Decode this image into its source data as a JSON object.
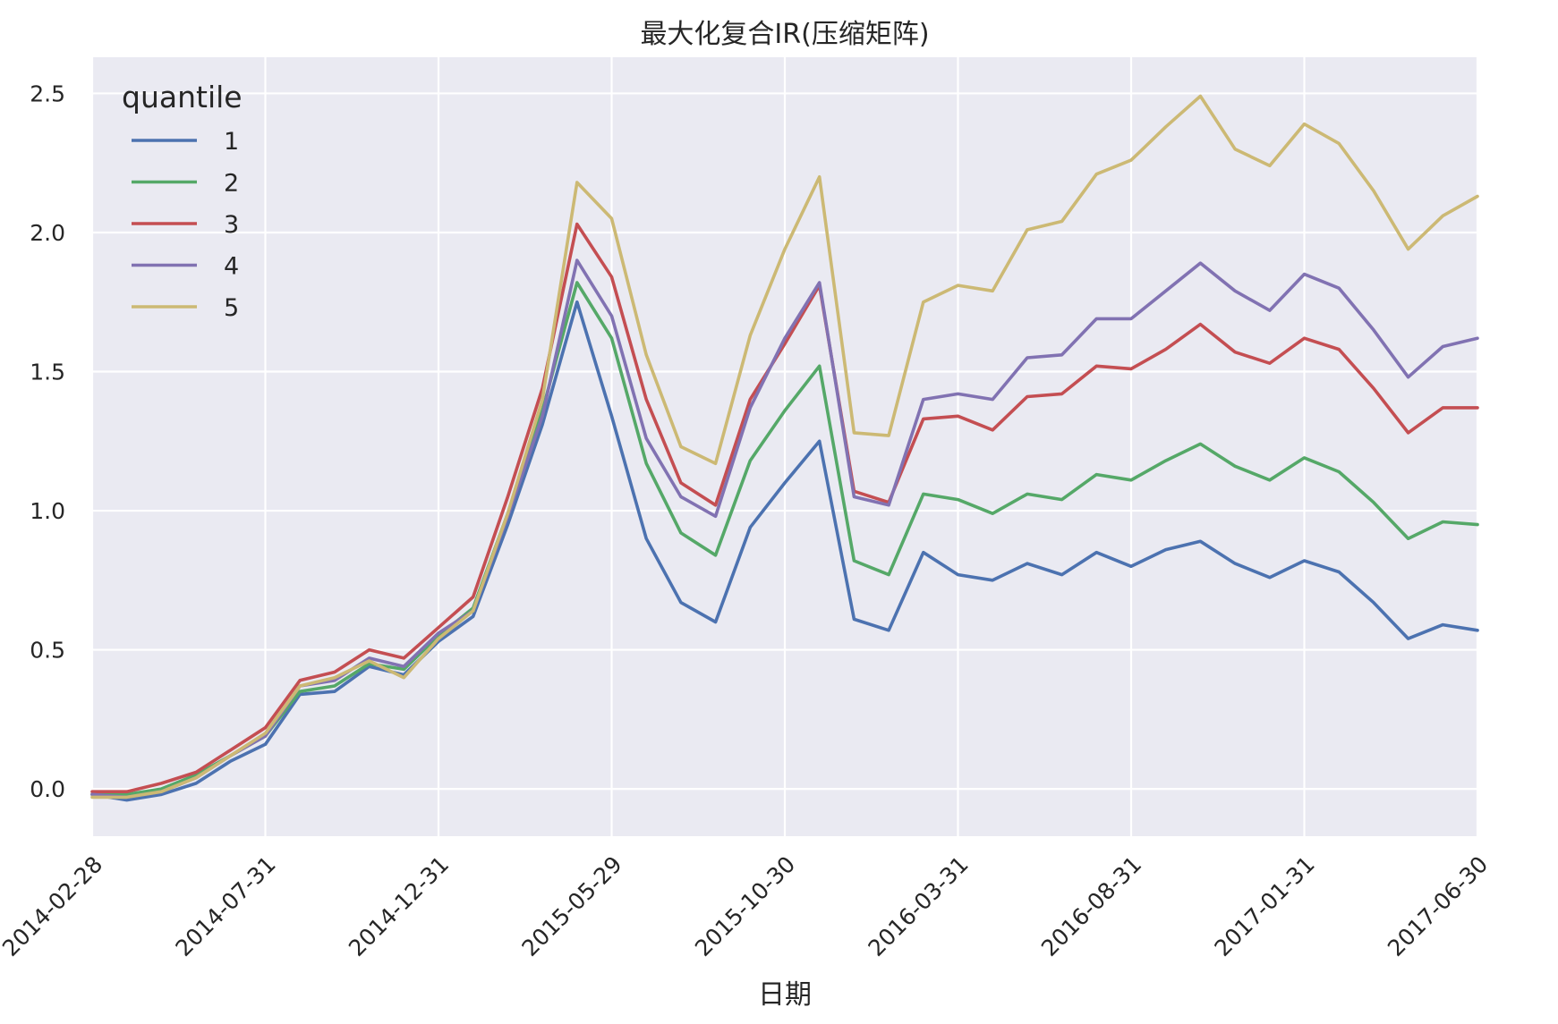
{
  "chart_data": {
    "type": "line",
    "title": "最大化复合IR(压缩矩阵)",
    "xlabel": "日期",
    "ylabel": "",
    "ylim": [
      -0.17,
      2.63
    ],
    "grid": true,
    "legend": {
      "title": "quantile",
      "placement": "top-left"
    },
    "x_tick_labels": [
      "2014-02-28",
      "2014-07-31",
      "2014-12-31",
      "2015-05-29",
      "2015-10-30",
      "2016-03-31",
      "2016-08-31",
      "2017-01-31",
      "2017-06-30"
    ],
    "x_tick_indices": [
      0,
      5,
      10,
      15,
      20,
      25,
      30,
      35,
      40
    ],
    "y_ticks": [
      0.0,
      0.5,
      1.0,
      1.5,
      2.0,
      2.5
    ],
    "y_tick_labels": [
      "0.0",
      "0.5",
      "1.0",
      "1.5",
      "2.0",
      "2.5"
    ],
    "x": [
      "2014-02-28",
      "2014-03-31",
      "2014-04-30",
      "2014-05-30",
      "2014-06-30",
      "2014-07-31",
      "2014-08-29",
      "2014-09-30",
      "2014-10-31",
      "2014-11-28",
      "2014-12-31",
      "2015-01-30",
      "2015-02-27",
      "2015-03-31",
      "2015-04-30",
      "2015-05-29",
      "2015-06-30",
      "2015-07-31",
      "2015-08-31",
      "2015-09-30",
      "2015-10-30",
      "2015-11-30",
      "2015-12-31",
      "2016-01-29",
      "2016-02-29",
      "2016-03-31",
      "2016-04-29",
      "2016-05-31",
      "2016-06-30",
      "2016-07-29",
      "2016-08-31",
      "2016-09-30",
      "2016-10-31",
      "2016-11-30",
      "2016-12-30",
      "2017-01-26",
      "2017-02-28",
      "2017-03-31",
      "2017-04-28",
      "2017-05-31",
      "2017-06-30"
    ],
    "series": [
      {
        "name": "1",
        "color": "#4c72b0",
        "values": [
          -0.02,
          -0.04,
          -0.02,
          0.02,
          0.1,
          0.16,
          0.34,
          0.35,
          0.44,
          0.41,
          0.53,
          0.62,
          0.95,
          1.31,
          1.75,
          1.34,
          0.9,
          0.67,
          0.6,
          0.94,
          1.1,
          1.25,
          0.61,
          0.57,
          0.85,
          0.77,
          0.75,
          0.81,
          0.77,
          0.85,
          0.8,
          0.86,
          0.89,
          0.81,
          0.76,
          0.82,
          0.78,
          0.67,
          0.54,
          0.59,
          0.57
        ]
      },
      {
        "name": "2",
        "color": "#55a868",
        "values": [
          -0.02,
          -0.02,
          0.0,
          0.05,
          0.12,
          0.19,
          0.35,
          0.37,
          0.45,
          0.43,
          0.55,
          0.65,
          0.99,
          1.36,
          1.82,
          1.62,
          1.17,
          0.92,
          0.84,
          1.18,
          1.36,
          1.52,
          0.82,
          0.77,
          1.06,
          1.04,
          0.99,
          1.06,
          1.04,
          1.13,
          1.11,
          1.18,
          1.24,
          1.16,
          1.11,
          1.19,
          1.14,
          1.03,
          0.9,
          0.96,
          0.95
        ]
      },
      {
        "name": "3",
        "color": "#c44e52",
        "values": [
          -0.01,
          -0.01,
          0.02,
          0.06,
          0.14,
          0.22,
          0.39,
          0.42,
          0.5,
          0.47,
          0.58,
          0.69,
          1.05,
          1.44,
          2.03,
          1.84,
          1.4,
          1.1,
          1.02,
          1.4,
          1.6,
          1.81,
          1.07,
          1.03,
          1.33,
          1.34,
          1.29,
          1.41,
          1.42,
          1.52,
          1.51,
          1.58,
          1.67,
          1.57,
          1.53,
          1.62,
          1.58,
          1.44,
          1.28,
          1.37,
          1.37
        ]
      },
      {
        "name": "4",
        "color": "#8172b2",
        "values": [
          -0.02,
          -0.03,
          -0.01,
          0.04,
          0.12,
          0.19,
          0.37,
          0.39,
          0.47,
          0.44,
          0.56,
          0.64,
          0.98,
          1.34,
          1.9,
          1.7,
          1.26,
          1.05,
          0.98,
          1.37,
          1.62,
          1.82,
          1.05,
          1.02,
          1.4,
          1.42,
          1.4,
          1.55,
          1.56,
          1.69,
          1.69,
          1.79,
          1.89,
          1.79,
          1.72,
          1.85,
          1.8,
          1.65,
          1.48,
          1.59,
          1.62
        ]
      },
      {
        "name": "5",
        "color": "#ccb974",
        "values": [
          -0.03,
          -0.03,
          -0.01,
          0.04,
          0.12,
          0.2,
          0.37,
          0.4,
          0.46,
          0.4,
          0.54,
          0.64,
          0.99,
          1.4,
          2.18,
          2.05,
          1.56,
          1.23,
          1.17,
          1.63,
          1.94,
          2.2,
          1.28,
          1.27,
          1.75,
          1.81,
          1.79,
          2.01,
          2.04,
          2.21,
          2.26,
          2.38,
          2.49,
          2.3,
          2.24,
          2.39,
          2.32,
          2.15,
          1.94,
          2.06,
          2.13
        ]
      }
    ]
  }
}
